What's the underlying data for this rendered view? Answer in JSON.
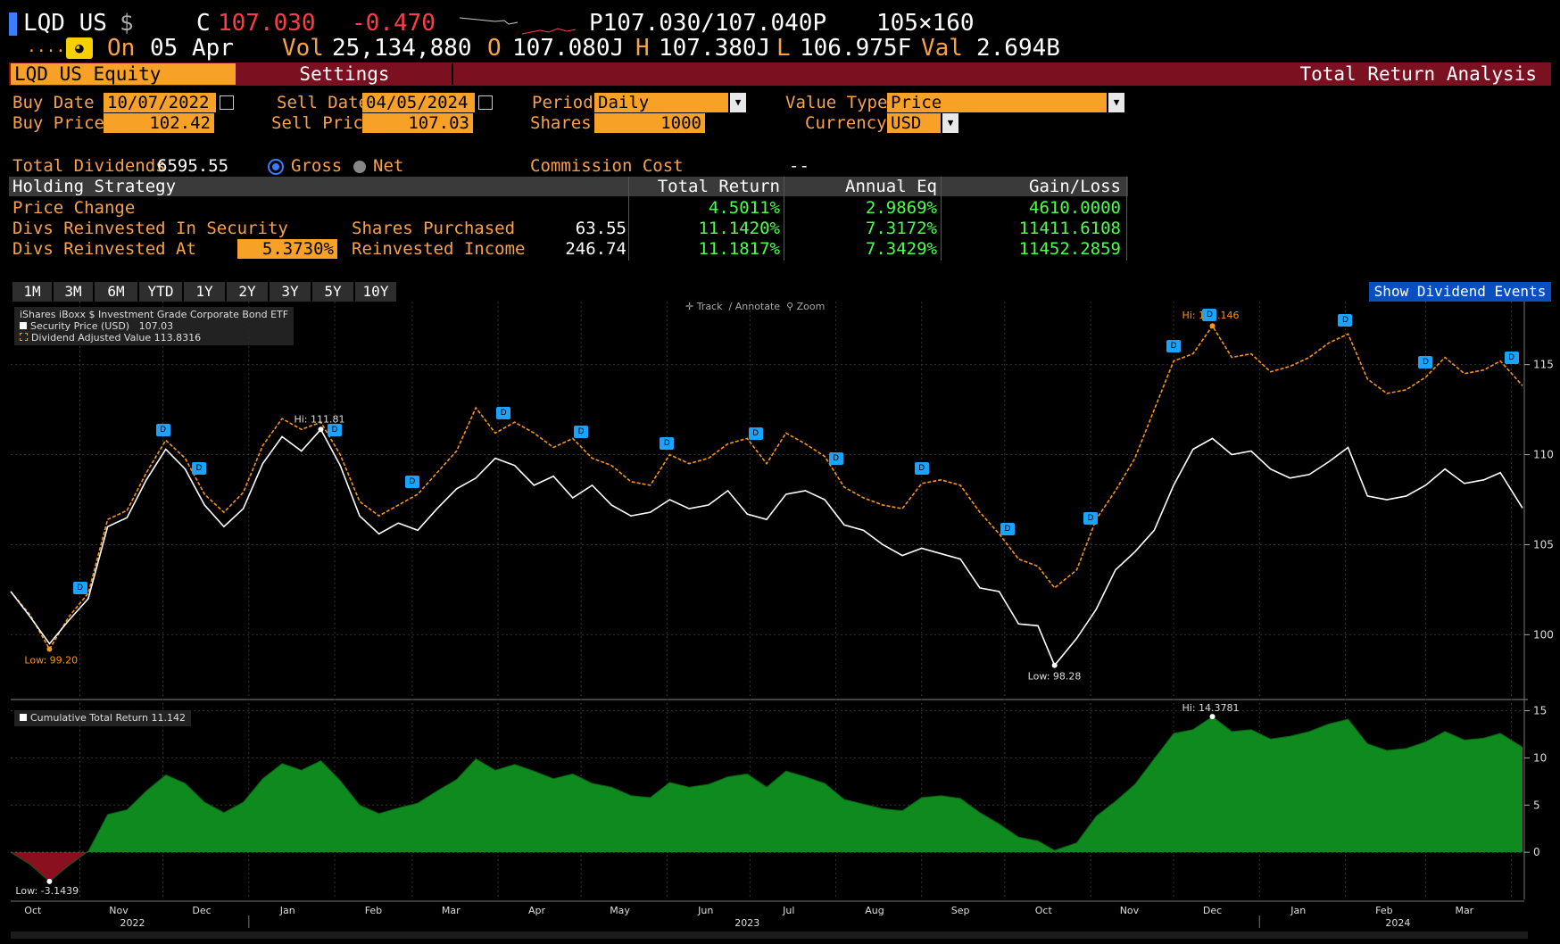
{
  "header": {
    "ticker": "LQD US",
    "currency_sym": "$",
    "c_label": "C",
    "price": "107.030",
    "change": "-0.470",
    "bid_ask": "P107.030/107.040P",
    "size": "105×160",
    "dots": "....",
    "on_label": "On",
    "date": "05 Apr",
    "vol_label": "Vol",
    "vol": "25,134,880",
    "o_label": "O",
    "open": "107.080J",
    "h_label": "H",
    "high": "107.380J",
    "l_label": "L",
    "low": "106.975F",
    "val_label": "Val",
    "val": "2.694B"
  },
  "tabs": {
    "security": "LQD US Equity",
    "settings": "Settings",
    "function": "Total Return Analysis"
  },
  "form": {
    "buy_date_label": "Buy Date",
    "buy_date": "10/07/2022",
    "sell_date_label": "Sell Date",
    "sell_date": "04/05/2024",
    "period_label": "Period",
    "period": "Daily",
    "value_type_label": "Value Type",
    "value_type": "Price",
    "buy_price_label": "Buy Price",
    "buy_price": "102.42",
    "sell_price_label": "Sell Price",
    "sell_price": "107.03",
    "shares_label": "Shares",
    "shares": "1000",
    "currency_label": "Currency",
    "currency": "USD",
    "total_div_label": "Total Dividends",
    "total_div": "6595.55",
    "gross_label": "Gross",
    "net_label": "Net",
    "commission_label": "Commission Cost",
    "commission": "--"
  },
  "table": {
    "headers": [
      "Holding Strategy",
      "Total Return",
      "Annual Eq",
      "Gain/Loss"
    ],
    "rows": [
      {
        "label": "Price Change",
        "extra_label": "",
        "extra_value": "",
        "total_return": "4.5011%",
        "annual_eq": "2.9869%",
        "gain_loss": "4610.0000"
      },
      {
        "label": "Divs Reinvested In Security",
        "extra_label": "Shares Purchased",
        "extra_value": "63.55",
        "total_return": "11.1420%",
        "annual_eq": "7.3172%",
        "gain_loss": "11411.6108"
      },
      {
        "label": "Divs Reinvested At",
        "rate": "5.3730%",
        "extra_label": "Reinvested Income",
        "extra_value": "246.74",
        "total_return": "11.1817%",
        "annual_eq": "7.3429%",
        "gain_loss": "11452.2859"
      }
    ]
  },
  "ranges": [
    "1M",
    "3M",
    "6M",
    "YTD",
    "1Y",
    "2Y",
    "3Y",
    "5Y",
    "10Y"
  ],
  "show_div_button": "Show Dividend Events",
  "chart_tools": [
    "Track",
    "Annotate",
    "Zoom"
  ],
  "chart_data": [
    {
      "type": "line",
      "title": "iShares iBoxx $ Investment Grade Corporate Bond ETF",
      "legend": [
        {
          "name": "Security Price (USD)",
          "last": "107.03",
          "color": "#ffffff"
        },
        {
          "name": "Dividend Adjusted Value",
          "last": "113.8316",
          "color": "#f7941d"
        }
      ],
      "ylim": [
        96.5,
        118.5
      ],
      "yticks": [
        100,
        105,
        110,
        115
      ],
      "x_range": [
        "2022-10-07",
        "2024-04-05"
      ],
      "annotations": {
        "hi_price": "Hi: 111.81",
        "hi_adj": "Hi: 117.146",
        "low_price": "Low: 98.28",
        "low_adj": "Low: 99.20"
      },
      "series": [
        {
          "name": "Security Price (USD)",
          "dates": [
            "2022-10-07",
            "2022-10-14",
            "2022-10-21",
            "2022-10-28",
            "2022-11-04",
            "2022-11-11",
            "2022-11-18",
            "2022-11-25",
            "2022-12-02",
            "2022-12-09",
            "2022-12-16",
            "2022-12-23",
            "2022-12-30",
            "2023-01-06",
            "2023-01-13",
            "2023-01-20",
            "2023-01-27",
            "2023-02-03",
            "2023-02-10",
            "2023-02-17",
            "2023-02-24",
            "2023-03-03",
            "2023-03-10",
            "2023-03-17",
            "2023-03-24",
            "2023-03-31",
            "2023-04-07",
            "2023-04-14",
            "2023-04-21",
            "2023-04-28",
            "2023-05-05",
            "2023-05-12",
            "2023-05-19",
            "2023-05-26",
            "2023-06-02",
            "2023-06-09",
            "2023-06-16",
            "2023-06-23",
            "2023-06-30",
            "2023-07-07",
            "2023-07-14",
            "2023-07-21",
            "2023-07-28",
            "2023-08-04",
            "2023-08-11",
            "2023-08-18",
            "2023-08-25",
            "2023-09-01",
            "2023-09-08",
            "2023-09-15",
            "2023-09-22",
            "2023-09-29",
            "2023-10-06",
            "2023-10-13",
            "2023-10-19",
            "2023-10-27",
            "2023-11-03",
            "2023-11-10",
            "2023-11-17",
            "2023-11-24",
            "2023-12-01",
            "2023-12-08",
            "2023-12-15",
            "2023-12-22",
            "2023-12-29",
            "2024-01-05",
            "2024-01-12",
            "2024-01-19",
            "2024-01-26",
            "2024-02-02",
            "2024-02-09",
            "2024-02-16",
            "2024-02-23",
            "2024-03-01",
            "2024-03-08",
            "2024-03-15",
            "2024-03-22",
            "2024-03-28",
            "2024-04-05"
          ],
          "values": [
            102.4,
            101.0,
            99.5,
            100.8,
            102.0,
            106.0,
            106.5,
            108.6,
            110.3,
            109.2,
            107.2,
            106.0,
            107.0,
            109.5,
            111.0,
            110.2,
            111.4,
            109.4,
            106.6,
            105.6,
            106.2,
            105.8,
            107.0,
            108.1,
            108.7,
            109.8,
            109.4,
            108.3,
            108.8,
            107.6,
            108.3,
            107.2,
            106.6,
            106.8,
            107.5,
            107.0,
            107.2,
            108.0,
            106.7,
            106.4,
            107.8,
            108.0,
            107.5,
            106.1,
            105.8,
            105.0,
            104.4,
            104.8,
            104.5,
            104.2,
            102.6,
            102.4,
            100.6,
            100.5,
            98.3,
            99.8,
            101.4,
            103.6,
            104.6,
            105.8,
            108.3,
            110.3,
            110.9,
            110.0,
            110.2,
            109.2,
            108.7,
            108.9,
            109.6,
            110.4,
            107.7,
            107.5,
            107.7,
            108.3,
            109.2,
            108.4,
            108.6,
            109.0,
            107.03
          ]
        },
        {
          "name": "Dividend Adjusted Value",
          "dates": [
            "2022-10-07",
            "2022-10-14",
            "2022-10-21",
            "2022-10-28",
            "2022-11-04",
            "2022-11-11",
            "2022-11-18",
            "2022-11-25",
            "2022-12-02",
            "2022-12-09",
            "2022-12-16",
            "2022-12-23",
            "2022-12-30",
            "2023-01-06",
            "2023-01-13",
            "2023-01-20",
            "2023-01-27",
            "2023-02-03",
            "2023-02-10",
            "2023-02-17",
            "2023-02-24",
            "2023-03-03",
            "2023-03-10",
            "2023-03-17",
            "2023-03-24",
            "2023-03-31",
            "2023-04-07",
            "2023-04-14",
            "2023-04-21",
            "2023-04-28",
            "2023-05-05",
            "2023-05-12",
            "2023-05-19",
            "2023-05-26",
            "2023-06-02",
            "2023-06-09",
            "2023-06-16",
            "2023-06-23",
            "2023-06-30",
            "2023-07-07",
            "2023-07-14",
            "2023-07-21",
            "2023-07-28",
            "2023-08-04",
            "2023-08-11",
            "2023-08-18",
            "2023-08-25",
            "2023-09-01",
            "2023-09-08",
            "2023-09-15",
            "2023-09-22",
            "2023-09-29",
            "2023-10-06",
            "2023-10-13",
            "2023-10-19",
            "2023-10-27",
            "2023-11-03",
            "2023-11-10",
            "2023-11-17",
            "2023-11-24",
            "2023-12-01",
            "2023-12-08",
            "2023-12-15",
            "2023-12-22",
            "2023-12-29",
            "2024-01-05",
            "2024-01-12",
            "2024-01-19",
            "2024-01-26",
            "2024-02-02",
            "2024-02-09",
            "2024-02-16",
            "2024-02-23",
            "2024-03-01",
            "2024-03-08",
            "2024-03-15",
            "2024-03-22",
            "2024-03-28",
            "2024-04-05"
          ],
          "values": [
            102.4,
            101.1,
            99.2,
            101.0,
            102.3,
            106.4,
            106.9,
            109.0,
            110.8,
            109.8,
            107.8,
            106.8,
            107.9,
            110.5,
            112.0,
            111.4,
            111.8,
            110.0,
            107.4,
            106.6,
            107.2,
            107.8,
            109.0,
            110.2,
            112.6,
            111.2,
            111.8,
            111.2,
            110.4,
            110.9,
            109.8,
            109.4,
            108.5,
            108.3,
            110.0,
            109.5,
            109.8,
            110.6,
            110.9,
            109.5,
            111.2,
            110.6,
            109.9,
            108.2,
            107.6,
            107.2,
            107.0,
            108.4,
            108.6,
            108.3,
            106.8,
            105.6,
            104.2,
            103.8,
            102.6,
            103.6,
            106.4,
            108.0,
            109.8,
            112.5,
            115.2,
            115.6,
            117.15,
            115.4,
            115.6,
            114.6,
            114.9,
            115.4,
            116.2,
            116.7,
            114.2,
            113.4,
            113.6,
            114.3,
            115.4,
            114.5,
            114.7,
            115.2,
            113.83
          ]
        }
      ],
      "dividend_events": [
        "2022-11-01",
        "2022-12-01",
        "2022-12-14",
        "2023-02-01",
        "2023-03-01",
        "2023-04-03",
        "2023-05-01",
        "2023-06-01",
        "2023-07-03",
        "2023-08-01",
        "2023-09-01",
        "2023-10-02",
        "2023-11-01",
        "2023-12-01",
        "2023-12-14",
        "2024-02-01",
        "2024-03-01",
        "2024-04-01"
      ]
    },
    {
      "type": "area",
      "legend": [
        {
          "name": "Cumulative Total Return",
          "last": "11.142",
          "color": "#ffffff"
        }
      ],
      "ylim": [
        -5,
        16
      ],
      "yticks": [
        0,
        5,
        10,
        15
      ],
      "annotations": {
        "hi": "Hi: 14.3781",
        "low": "Low: -3.1439"
      },
      "series": [
        {
          "name": "Cumulative Total Return",
          "dates": [
            "2022-10-07",
            "2022-10-14",
            "2022-10-21",
            "2022-10-28",
            "2022-11-04",
            "2022-11-11",
            "2022-11-18",
            "2022-11-25",
            "2022-12-02",
            "2022-12-09",
            "2022-12-16",
            "2022-12-23",
            "2022-12-30",
            "2023-01-06",
            "2023-01-13",
            "2023-01-20",
            "2023-01-27",
            "2023-02-03",
            "2023-02-10",
            "2023-02-17",
            "2023-02-24",
            "2023-03-03",
            "2023-03-10",
            "2023-03-17",
            "2023-03-24",
            "2023-03-31",
            "2023-04-07",
            "2023-04-14",
            "2023-04-21",
            "2023-04-28",
            "2023-05-05",
            "2023-05-12",
            "2023-05-19",
            "2023-05-26",
            "2023-06-02",
            "2023-06-09",
            "2023-06-16",
            "2023-06-23",
            "2023-06-30",
            "2023-07-07",
            "2023-07-14",
            "2023-07-21",
            "2023-07-28",
            "2023-08-04",
            "2023-08-11",
            "2023-08-18",
            "2023-08-25",
            "2023-09-01",
            "2023-09-08",
            "2023-09-15",
            "2023-09-22",
            "2023-09-29",
            "2023-10-06",
            "2023-10-13",
            "2023-10-19",
            "2023-10-27",
            "2023-11-03",
            "2023-11-10",
            "2023-11-17",
            "2023-11-24",
            "2023-12-01",
            "2023-12-08",
            "2023-12-15",
            "2023-12-22",
            "2023-12-29",
            "2024-01-05",
            "2024-01-12",
            "2024-01-19",
            "2024-01-26",
            "2024-02-02",
            "2024-02-09",
            "2024-02-16",
            "2024-02-23",
            "2024-03-01",
            "2024-03-08",
            "2024-03-15",
            "2024-03-22",
            "2024-03-28",
            "2024-04-05"
          ],
          "values": [
            0,
            -1.3,
            -3.1,
            -1.4,
            0.1,
            4.0,
            4.5,
            6.5,
            8.2,
            7.3,
            5.3,
            4.2,
            5.3,
            7.8,
            9.4,
            8.7,
            9.7,
            7.6,
            5.0,
            4.1,
            4.7,
            5.2,
            6.5,
            7.7,
            9.9,
            8.7,
            9.3,
            8.6,
            7.8,
            8.3,
            7.3,
            6.9,
            6.0,
            5.8,
            7.4,
            6.9,
            7.2,
            8.0,
            8.3,
            6.9,
            8.6,
            8.0,
            7.3,
            5.6,
            5.1,
            4.6,
            4.4,
            5.8,
            6.0,
            5.7,
            4.2,
            3.0,
            1.6,
            1.2,
            0.2,
            1.0,
            3.8,
            5.4,
            7.2,
            9.9,
            12.6,
            13.0,
            14.38,
            12.8,
            13.0,
            12.0,
            12.3,
            12.8,
            13.6,
            14.1,
            11.5,
            10.8,
            11.0,
            11.7,
            12.8,
            11.9,
            12.1,
            12.6,
            11.14
          ]
        }
      ],
      "x_months": [
        "Oct",
        "Nov",
        "Dec",
        "Jan",
        "Feb",
        "Mar",
        "Apr",
        "May",
        "Jun",
        "Jul",
        "Aug",
        "Sep",
        "Oct",
        "Nov",
        "Dec",
        "Jan",
        "Feb",
        "Mar"
      ],
      "x_years": [
        "2022",
        "2023",
        "2024"
      ]
    }
  ]
}
